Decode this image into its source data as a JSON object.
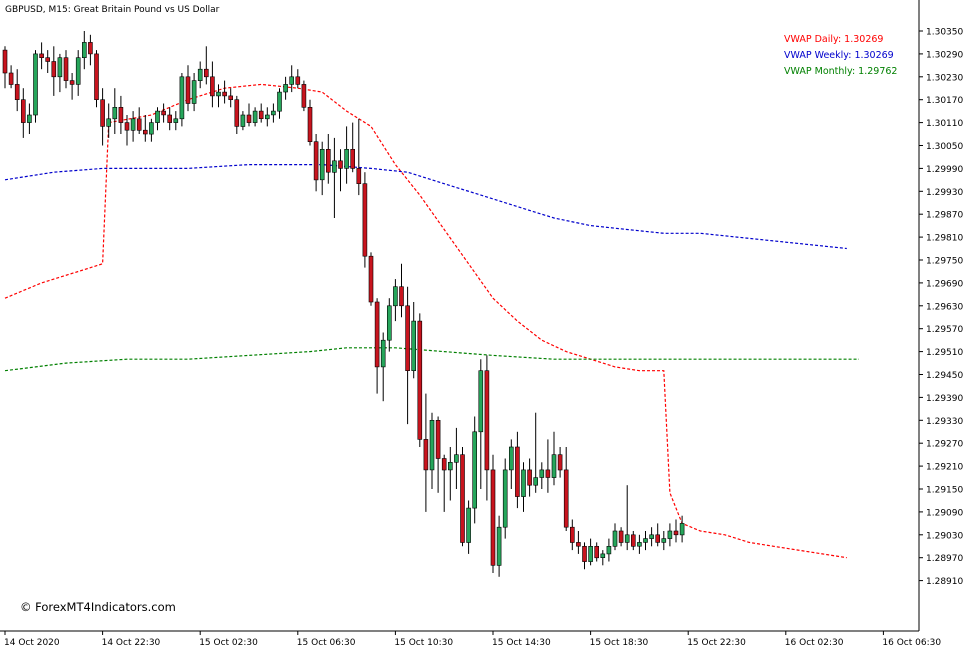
{
  "chart_data": {
    "type": "candlestick",
    "title": "GBPUSD, M15:  Great Britain Pound vs US Dollar",
    "watermark": "© ForexMT4Indicators.com",
    "ylim": [
      1.28833,
      1.30405
    ],
    "grid": false,
    "colors": {
      "up": "#26a65b",
      "down": "#c8141e",
      "wick": "#000000",
      "vwap_daily": "#ff0000",
      "vwap_weekly": "#0000cc",
      "vwap_monthly": "#008000"
    },
    "y_ticks": [
      "1.30350",
      "1.30290",
      "1.30230",
      "1.30170",
      "1.30110",
      "1.30050",
      "1.29990",
      "1.29930",
      "1.29870",
      "1.29810",
      "1.29750",
      "1.29690",
      "1.29630",
      "1.29570",
      "1.29510",
      "1.29450",
      "1.29390",
      "1.29330",
      "1.29270",
      "1.29210",
      "1.29150",
      "1.29090",
      "1.29030",
      "1.28970",
      "1.28910"
    ],
    "x_ticks": [
      {
        "label": "14 Oct 2020",
        "bar": 0
      },
      {
        "label": "14 Oct 22:30",
        "bar": 16
      },
      {
        "label": "15 Oct 02:30",
        "bar": 32
      },
      {
        "label": "15 Oct 06:30",
        "bar": 48
      },
      {
        "label": "15 Oct 10:30",
        "bar": 64
      },
      {
        "label": "15 Oct 14:30",
        "bar": 80
      },
      {
        "label": "15 Oct 18:30",
        "bar": 96
      },
      {
        "label": "15 Oct 22:30",
        "bar": 112
      },
      {
        "label": "16 Oct 02:30",
        "bar": 128
      },
      {
        "label": "16 Oct 06:30",
        "bar": 144
      }
    ],
    "legend": [
      {
        "key": "daily",
        "label": "VWAP Daily: 1.30269",
        "color": "#ff0000"
      },
      {
        "key": "weekly",
        "label": "VWAP Weekly: 1.30269",
        "color": "#0000cc"
      },
      {
        "key": "monthly",
        "label": "VWAP Monthly: 1.29762",
        "color": "#008000"
      }
    ],
    "candles": [
      [
        1.303,
        1.3031,
        1.302,
        1.3024
      ],
      [
        1.3024,
        1.3026,
        1.302,
        1.3021
      ],
      [
        1.3021,
        1.3025,
        1.3014,
        1.3017
      ],
      [
        1.3017,
        1.302,
        1.3007,
        1.3011
      ],
      [
        1.3011,
        1.3016,
        1.3008,
        1.3013
      ],
      [
        1.3013,
        1.303,
        1.3011,
        1.3029
      ],
      [
        1.3029,
        1.3032,
        1.3025,
        1.3028
      ],
      [
        1.3028,
        1.303,
        1.3024,
        1.3027
      ],
      [
        1.3027,
        1.3031,
        1.3018,
        1.3023
      ],
      [
        1.3023,
        1.3029,
        1.3019,
        1.3028
      ],
      [
        1.3028,
        1.303,
        1.302,
        1.3022
      ],
      [
        1.3022,
        1.3024,
        1.3017,
        1.3021
      ],
      [
        1.3021,
        1.303,
        1.3018,
        1.3028
      ],
      [
        1.3028,
        1.3035,
        1.3025,
        1.3032
      ],
      [
        1.3032,
        1.3034,
        1.3026,
        1.3029
      ],
      [
        1.3029,
        1.303,
        1.3015,
        1.3017
      ],
      [
        1.3017,
        1.302,
        1.3005,
        1.301
      ],
      [
        1.301,
        1.3016,
        1.3007,
        1.3012
      ],
      [
        1.3012,
        1.302,
        1.3008,
        1.3015
      ],
      [
        1.3015,
        1.3018,
        1.3008,
        1.3011
      ],
      [
        1.3011,
        1.3013,
        1.3005,
        1.3009
      ],
      [
        1.3009,
        1.3014,
        1.3006,
        1.3012
      ],
      [
        1.3012,
        1.3015,
        1.3008,
        1.3009
      ],
      [
        1.3009,
        1.3013,
        1.3006,
        1.3008
      ],
      [
        1.3008,
        1.3012,
        1.3006,
        1.3011
      ],
      [
        1.3011,
        1.3015,
        1.3009,
        1.3014
      ],
      [
        1.3014,
        1.3016,
        1.3011,
        1.3013
      ],
      [
        1.3013,
        1.3015,
        1.3009,
        1.3011
      ],
      [
        1.3011,
        1.3014,
        1.3009,
        1.3012
      ],
      [
        1.3012,
        1.3024,
        1.301,
        1.3023
      ],
      [
        1.3023,
        1.3026,
        1.3014,
        1.3016
      ],
      [
        1.3016,
        1.3024,
        1.3014,
        1.3022
      ],
      [
        1.3022,
        1.3027,
        1.302,
        1.3025
      ],
      [
        1.3025,
        1.3031,
        1.3021,
        1.3023
      ],
      [
        1.3023,
        1.3027,
        1.3015,
        1.3018
      ],
      [
        1.3018,
        1.3021,
        1.3015,
        1.3019
      ],
      [
        1.3019,
        1.3022,
        1.3016,
        1.3018
      ],
      [
        1.3018,
        1.302,
        1.3015,
        1.3017
      ],
      [
        1.3017,
        1.3018,
        1.3008,
        1.301
      ],
      [
        1.301,
        1.3014,
        1.3009,
        1.3013
      ],
      [
        1.3013,
        1.3016,
        1.301,
        1.3011
      ],
      [
        1.3011,
        1.3015,
        1.301,
        1.3014
      ],
      [
        1.3014,
        1.3016,
        1.3011,
        1.3012
      ],
      [
        1.3012,
        1.3015,
        1.301,
        1.3013
      ],
      [
        1.3013,
        1.3016,
        1.3011,
        1.3014
      ],
      [
        1.3014,
        1.302,
        1.3012,
        1.3019
      ],
      [
        1.3019,
        1.3023,
        1.3017,
        1.3021
      ],
      [
        1.3021,
        1.3026,
        1.3019,
        1.3023
      ],
      [
        1.3023,
        1.3025,
        1.302,
        1.3021
      ],
      [
        1.3021,
        1.3022,
        1.3014,
        1.3015
      ],
      [
        1.3015,
        1.3017,
        1.3005,
        1.3006
      ],
      [
        1.3006,
        1.3008,
        1.2993,
        1.2996
      ],
      [
        1.2996,
        1.3006,
        1.2992,
        1.3004
      ],
      [
        1.3004,
        1.3008,
        1.2995,
        1.2998
      ],
      [
        1.2998,
        1.3007,
        1.2986,
        1.3001
      ],
      [
        1.3001,
        1.3004,
        1.2993,
        1.2999
      ],
      [
        1.2999,
        1.301,
        1.2995,
        1.3004
      ],
      [
        1.3004,
        1.3011,
        1.2998,
        1.2999
      ],
      [
        1.2999,
        1.3012,
        1.2992,
        1.2995
      ],
      [
        1.2995,
        1.2998,
        1.2973,
        1.2976
      ],
      [
        1.2976,
        1.2977,
        1.2963,
        1.2964
      ],
      [
        1.2964,
        1.2965,
        1.294,
        1.2947
      ],
      [
        1.2947,
        1.2956,
        1.2938,
        1.2954
      ],
      [
        1.2954,
        1.2965,
        1.2951,
        1.2963
      ],
      [
        1.2963,
        1.297,
        1.2959,
        1.2968
      ],
      [
        1.2968,
        1.2974,
        1.296,
        1.2963
      ],
      [
        1.2963,
        1.2968,
        1.2932,
        1.2946
      ],
      [
        1.2946,
        1.2964,
        1.2944,
        1.2959
      ],
      [
        1.2959,
        1.2961,
        1.2926,
        1.2928
      ],
      [
        1.2928,
        1.294,
        1.2909,
        1.292
      ],
      [
        1.292,
        1.2935,
        1.2915,
        1.2933
      ],
      [
        1.2933,
        1.2934,
        1.2914,
        1.2923
      ],
      [
        1.2923,
        1.2924,
        1.2909,
        1.292
      ],
      [
        1.292,
        1.2926,
        1.2912,
        1.2922
      ],
      [
        1.2922,
        1.2931,
        1.2915,
        1.2924
      ],
      [
        1.2924,
        1.2926,
        1.29,
        1.2901
      ],
      [
        1.2901,
        1.2912,
        1.2898,
        1.291
      ],
      [
        1.291,
        1.2934,
        1.2906,
        1.293
      ],
      [
        1.293,
        1.2949,
        1.2915,
        1.2946
      ],
      [
        1.2946,
        1.295,
        1.2912,
        1.292
      ],
      [
        1.292,
        1.2924,
        1.2893,
        1.2895
      ],
      [
        1.2895,
        1.2908,
        1.2892,
        1.2905
      ],
      [
        1.2905,
        1.2923,
        1.2902,
        1.292
      ],
      [
        1.292,
        1.2928,
        1.2915,
        1.2926
      ],
      [
        1.2926,
        1.293,
        1.291,
        1.2913
      ],
      [
        1.2913,
        1.2922,
        1.2909,
        1.292
      ],
      [
        1.292,
        1.2923,
        1.2913,
        1.2916
      ],
      [
        1.2916,
        1.2935,
        1.2914,
        1.2918
      ],
      [
        1.2918,
        1.2922,
        1.2915,
        1.292
      ],
      [
        1.292,
        1.2928,
        1.2914,
        1.2918
      ],
      [
        1.2918,
        1.293,
        1.2916,
        1.2924
      ],
      [
        1.2924,
        1.2926,
        1.2918,
        1.292
      ],
      [
        1.292,
        1.2926,
        1.2904,
        1.2905
      ],
      [
        1.2905,
        1.2907,
        1.2899,
        1.2901
      ],
      [
        1.2901,
        1.2904,
        1.2898,
        1.29
      ],
      [
        1.29,
        1.2901,
        1.2894,
        1.2896
      ],
      [
        1.2896,
        1.2902,
        1.2895,
        1.29
      ],
      [
        1.29,
        1.2901,
        1.2896,
        1.2897
      ],
      [
        1.2897,
        1.2899,
        1.2895,
        1.2898
      ],
      [
        1.2898,
        1.2902,
        1.2896,
        1.29
      ],
      [
        1.29,
        1.2906,
        1.2899,
        1.2904
      ],
      [
        1.2904,
        1.2905,
        1.29,
        1.2901
      ],
      [
        1.2901,
        1.2916,
        1.2899,
        1.2903
      ],
      [
        1.2903,
        1.2904,
        1.2899,
        1.29
      ],
      [
        1.29,
        1.2903,
        1.2898,
        1.2901
      ],
      [
        1.2901,
        1.2904,
        1.2899,
        1.2902
      ],
      [
        1.2902,
        1.2905,
        1.29,
        1.2903
      ],
      [
        1.2903,
        1.2906,
        1.29,
        1.2901
      ],
      [
        1.2901,
        1.2904,
        1.2899,
        1.2902
      ],
      [
        1.2902,
        1.2906,
        1.29,
        1.2904
      ],
      [
        1.2904,
        1.2907,
        1.2901,
        1.2903
      ],
      [
        1.2903,
        1.2908,
        1.2901,
        1.2906
      ]
    ],
    "vwap_daily": [
      [
        0,
        1.2965
      ],
      [
        6,
        1.2969
      ],
      [
        12,
        1.2972
      ],
      [
        16,
        1.2974
      ],
      [
        17,
        1.3011
      ],
      [
        24,
        1.3013
      ],
      [
        30,
        1.3017
      ],
      [
        36,
        1.302
      ],
      [
        42,
        1.3021
      ],
      [
        48,
        1.302
      ],
      [
        52,
        1.3019
      ],
      [
        56,
        1.3014
      ],
      [
        60,
        1.301
      ],
      [
        64,
        1.3
      ],
      [
        68,
        1.2992
      ],
      [
        72,
        1.2983
      ],
      [
        76,
        1.2974
      ],
      [
        80,
        1.2965
      ],
      [
        84,
        1.2959
      ],
      [
        88,
        1.2954
      ],
      [
        92,
        1.2951
      ],
      [
        96,
        1.2949
      ],
      [
        100,
        1.2947
      ],
      [
        104,
        1.2946
      ],
      [
        108,
        1.2946
      ],
      [
        109,
        1.2914
      ],
      [
        111,
        1.2906
      ],
      [
        114,
        1.2904
      ],
      [
        118,
        1.2903
      ],
      [
        122,
        1.2901
      ],
      [
        126,
        1.29
      ],
      [
        130,
        1.2899
      ],
      [
        134,
        1.2898
      ],
      [
        138,
        1.2897
      ]
    ],
    "vwap_weekly": [
      [
        0,
        1.2996
      ],
      [
        8,
        1.2998
      ],
      [
        16,
        1.2999
      ],
      [
        30,
        1.2999
      ],
      [
        40,
        1.3
      ],
      [
        52,
        1.3
      ],
      [
        60,
        1.2999
      ],
      [
        66,
        1.2998
      ],
      [
        72,
        1.2995
      ],
      [
        78,
        1.2992
      ],
      [
        84,
        1.2989
      ],
      [
        90,
        1.2986
      ],
      [
        96,
        1.2984
      ],
      [
        102,
        1.2983
      ],
      [
        108,
        1.2982
      ],
      [
        114,
        1.2982
      ],
      [
        120,
        1.2981
      ],
      [
        126,
        1.298
      ],
      [
        132,
        1.2979
      ],
      [
        138,
        1.2978
      ]
    ],
    "vwap_monthly": [
      [
        0,
        1.2946
      ],
      [
        10,
        1.2948
      ],
      [
        20,
        1.2949
      ],
      [
        30,
        1.2949
      ],
      [
        40,
        1.295
      ],
      [
        50,
        1.2951
      ],
      [
        56,
        1.2952
      ],
      [
        64,
        1.2952
      ],
      [
        72,
        1.2951
      ],
      [
        80,
        1.295
      ],
      [
        90,
        1.2949
      ],
      [
        100,
        1.2949
      ],
      [
        110,
        1.2949
      ],
      [
        120,
        1.2949
      ],
      [
        130,
        1.2949
      ],
      [
        140,
        1.2949
      ]
    ]
  }
}
